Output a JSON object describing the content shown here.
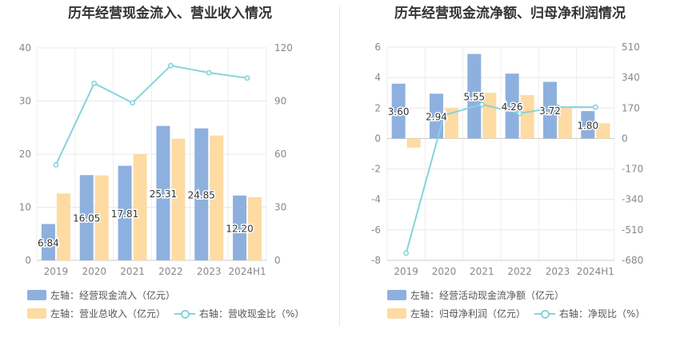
{
  "charts": [
    {
      "title": "历年经营现金流入、营业收入情况",
      "legend": [
        "左轴：经营现金流入（亿元）",
        "左轴：营业总收入（亿元）",
        "右轴：营收现金比（%）"
      ]
    },
    {
      "title": "历年经营现金流净额、归母净利润情况",
      "legend": [
        "左轴：经营活动现金流净额（亿元）",
        "左轴：归母净利润（亿元）",
        "右轴：净现比（%）"
      ]
    }
  ],
  "chart_data": [
    {
      "type": "bar",
      "title": "历年经营现金流入、营业收入情况",
      "categories": [
        "2019",
        "2020",
        "2021",
        "2022",
        "2023",
        "2024H1"
      ],
      "left_axis": {
        "ticks": [
          0,
          10,
          20,
          30,
          40
        ],
        "ylim": [
          0,
          40
        ]
      },
      "right_axis": {
        "ticks": [
          0,
          30,
          60,
          90,
          120
        ],
        "ylim": [
          0,
          120
        ]
      },
      "series": [
        {
          "name": "左轴：经营现金流入（亿元）",
          "kind": "bar",
          "axis": "left",
          "color": "#8eb0de",
          "values": [
            6.84,
            16.05,
            17.81,
            25.31,
            24.85,
            12.2
          ],
          "labels": [
            "6.84",
            "16.05",
            "17.81",
            "25.31",
            "24.85",
            "12.20"
          ]
        },
        {
          "name": "左轴：营业总收入（亿元）",
          "kind": "bar",
          "axis": "left",
          "color": "#fddba3",
          "values": [
            12.6,
            16.0,
            20.0,
            22.9,
            23.5,
            11.9
          ]
        },
        {
          "name": "右轴：营收现金比（%）",
          "kind": "line",
          "axis": "right",
          "color": "#86d3dc",
          "values": [
            54,
            100,
            89,
            110,
            106,
            103
          ]
        }
      ],
      "grid": true,
      "legend_position": "bottom"
    },
    {
      "type": "bar",
      "title": "历年经营现金流净额、归母净利润情况",
      "categories": [
        "2019",
        "2020",
        "2021",
        "2022",
        "2023",
        "2024H1"
      ],
      "left_axis": {
        "ticks": [
          -8,
          -6,
          -4,
          -2,
          0,
          2,
          4,
          6
        ],
        "ylim": [
          -8,
          6
        ]
      },
      "right_axis": {
        "ticks": [
          -680,
          -510,
          -340,
          -170,
          0,
          170,
          340,
          510
        ],
        "ylim": [
          -680,
          510
        ]
      },
      "series": [
        {
          "name": "左轴：经营活动现金流净额（亿元）",
          "kind": "bar",
          "axis": "left",
          "color": "#8eb0de",
          "values": [
            3.6,
            2.94,
            5.55,
            4.26,
            3.72,
            1.8
          ],
          "labels": [
            "3.60",
            "2.94",
            "5.55",
            "4.26",
            "3.72",
            "1.80"
          ]
        },
        {
          "name": "左轴：归母净利润（亿元）",
          "kind": "bar",
          "axis": "left",
          "color": "#fddba3",
          "values": [
            -0.6,
            2.0,
            3.0,
            2.85,
            2.0,
            1.0
          ]
        },
        {
          "name": "右轴：净现比（%）",
          "kind": "line",
          "axis": "right",
          "color": "#86d3dc",
          "values": [
            -640,
            130,
            190,
            140,
            175,
            175
          ]
        }
      ],
      "grid": true,
      "legend_position": "bottom"
    }
  ]
}
